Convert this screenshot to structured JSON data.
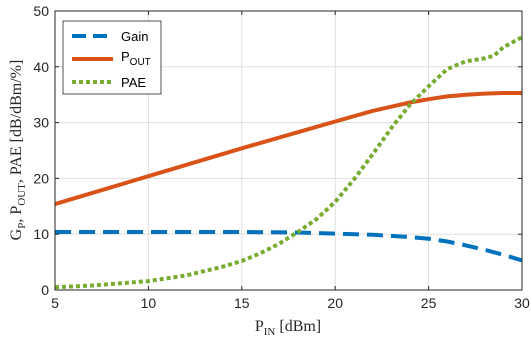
{
  "chart_data": {
    "type": "line",
    "title": "",
    "xlabel": {
      "main": "P",
      "sub": "IN",
      "rest": " [dBm]"
    },
    "ylabel": {
      "p1": "G",
      "s1": "P",
      "p2": ", P",
      "s2": "OUT",
      "p3": ", PAE [dB/dBm/%]"
    },
    "xlim": [
      5,
      30
    ],
    "ylim": [
      0,
      50
    ],
    "xticks": [
      "5",
      "10",
      "15",
      "20",
      "25",
      "30"
    ],
    "yticks": [
      "0",
      "10",
      "20",
      "30",
      "40",
      "50"
    ],
    "grid": true,
    "legend_position": "top-left",
    "series": [
      {
        "name": "Gain",
        "style": "dashed",
        "color": "#0072BD",
        "x": [
          5,
          10,
          15,
          18,
          20,
          22,
          24,
          25,
          26,
          27,
          28,
          29,
          30
        ],
        "y": [
          10.4,
          10.4,
          10.4,
          10.3,
          10.1,
          9.9,
          9.5,
          9.2,
          8.7,
          8.0,
          7.2,
          6.3,
          5.3
        ]
      },
      {
        "name_main": "P",
        "name_sub": "OUT",
        "style": "solid",
        "color": "#D95319",
        "x": [
          5,
          10,
          15,
          20,
          22,
          24,
          25,
          26,
          27,
          28,
          29,
          30
        ],
        "y": [
          15.4,
          20.4,
          25.4,
          30.2,
          32.1,
          33.6,
          34.2,
          34.7,
          35.0,
          35.2,
          35.3,
          35.3
        ]
      },
      {
        "name": "PAE",
        "style": "dotted",
        "color": "#77AC30",
        "x": [
          5,
          7,
          10,
          12,
          14,
          15,
          16,
          17,
          18,
          19,
          20,
          21,
          22,
          23,
          24,
          25,
          26,
          27,
          28,
          28.5,
          29,
          30
        ],
        "y": [
          0.5,
          0.8,
          1.6,
          2.6,
          4.2,
          5.2,
          6.6,
          8.3,
          10.4,
          12.7,
          15.8,
          19.8,
          24.3,
          29.0,
          33.2,
          36.5,
          39.6,
          41.0,
          41.5,
          42.0,
          43.5,
          45.3
        ]
      }
    ]
  }
}
